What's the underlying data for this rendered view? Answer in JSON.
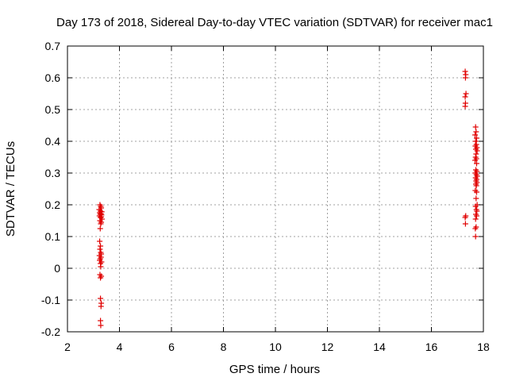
{
  "chart_data": {
    "type": "scatter",
    "title": "Day 173 of 2018, Sidereal Day-to-day VTEC variation (SDTVAR) for receiver mac1",
    "xlabel": "GPS time / hours",
    "ylabel": "SDTVAR / TECUs",
    "xlim": [
      2,
      18
    ],
    "ylim": [
      -0.2,
      0.7
    ],
    "xticks": [
      2,
      4,
      6,
      8,
      10,
      12,
      14,
      16,
      18
    ],
    "yticks": [
      -0.2,
      -0.1,
      0,
      0.1,
      0.2,
      0.3,
      0.4,
      0.5,
      0.6,
      0.7
    ],
    "ytick_labels": [
      "-0.2",
      "-0.1",
      "0",
      "0.1",
      "0.2",
      "0.3",
      "0.4",
      "0.5",
      "0.6",
      "0.7"
    ],
    "grid": true,
    "marker": "+",
    "colors": {
      "points": "#e00000",
      "grid": "#a0a0a0",
      "frame": "#000000"
    },
    "series": [
      {
        "points": [
          [
            3.25,
            0.2
          ],
          [
            3.28,
            0.195
          ],
          [
            3.3,
            0.19
          ],
          [
            3.22,
            0.185
          ],
          [
            3.27,
            0.18
          ],
          [
            3.32,
            0.178
          ],
          [
            3.24,
            0.175
          ],
          [
            3.29,
            0.172
          ],
          [
            3.26,
            0.17
          ],
          [
            3.31,
            0.168
          ],
          [
            3.23,
            0.165
          ],
          [
            3.3,
            0.162
          ],
          [
            3.27,
            0.16
          ],
          [
            3.33,
            0.155
          ],
          [
            3.25,
            0.15
          ],
          [
            3.3,
            0.145
          ],
          [
            3.28,
            0.14
          ],
          [
            3.26,
            0.125
          ],
          [
            3.24,
            0.085
          ],
          [
            3.27,
            0.07
          ],
          [
            3.25,
            0.06
          ],
          [
            3.28,
            0.05
          ],
          [
            3.3,
            0.045
          ],
          [
            3.23,
            0.04
          ],
          [
            3.29,
            0.035
          ],
          [
            3.26,
            0.03
          ],
          [
            3.24,
            0.025
          ],
          [
            3.31,
            0.02
          ],
          [
            3.27,
            0.015
          ],
          [
            3.28,
            0.005
          ],
          [
            3.25,
            -0.02
          ],
          [
            3.3,
            -0.025
          ],
          [
            3.27,
            -0.03
          ],
          [
            3.27,
            -0.095
          ],
          [
            3.3,
            -0.11
          ],
          [
            3.29,
            -0.12
          ],
          [
            3.27,
            -0.165
          ],
          [
            3.28,
            -0.18
          ],
          [
            17.3,
            0.62
          ],
          [
            17.32,
            0.61
          ],
          [
            17.31,
            0.6
          ],
          [
            17.33,
            0.55
          ],
          [
            17.3,
            0.54
          ],
          [
            17.31,
            0.52
          ],
          [
            17.3,
            0.51
          ],
          [
            17.32,
            0.165
          ],
          [
            17.3,
            0.16
          ],
          [
            17.31,
            0.14
          ],
          [
            17.7,
            0.445
          ],
          [
            17.72,
            0.43
          ],
          [
            17.68,
            0.42
          ],
          [
            17.74,
            0.41
          ],
          [
            17.7,
            0.4
          ],
          [
            17.73,
            0.39
          ],
          [
            17.69,
            0.385
          ],
          [
            17.75,
            0.38
          ],
          [
            17.71,
            0.375
          ],
          [
            17.76,
            0.37
          ],
          [
            17.72,
            0.36
          ],
          [
            17.7,
            0.35
          ],
          [
            17.73,
            0.345
          ],
          [
            17.68,
            0.34
          ],
          [
            17.74,
            0.33
          ],
          [
            17.71,
            0.31
          ],
          [
            17.75,
            0.305
          ],
          [
            17.69,
            0.3
          ],
          [
            17.73,
            0.295
          ],
          [
            17.76,
            0.29
          ],
          [
            17.7,
            0.285
          ],
          [
            17.74,
            0.28
          ],
          [
            17.72,
            0.275
          ],
          [
            17.75,
            0.27
          ],
          [
            17.71,
            0.265
          ],
          [
            17.73,
            0.26
          ],
          [
            17.69,
            0.245
          ],
          [
            17.74,
            0.24
          ],
          [
            17.72,
            0.22
          ],
          [
            17.76,
            0.2
          ],
          [
            17.7,
            0.195
          ],
          [
            17.73,
            0.185
          ],
          [
            17.75,
            0.18
          ],
          [
            17.71,
            0.17
          ],
          [
            17.74,
            0.165
          ],
          [
            17.7,
            0.155
          ],
          [
            17.72,
            0.13
          ],
          [
            17.69,
            0.125
          ],
          [
            17.7,
            0.1
          ]
        ]
      }
    ]
  }
}
